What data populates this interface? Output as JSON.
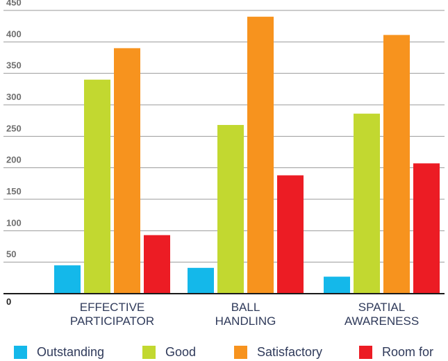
{
  "chart_data": {
    "type": "bar",
    "categories": [
      [
        "EFFECTIVE",
        "PARTICIPATOR"
      ],
      [
        "BALL",
        "HANDLING"
      ],
      [
        "SPATIAL",
        "AWARENESS"
      ]
    ],
    "series": [
      {
        "name": "Outstanding",
        "color": "#14b8ea",
        "values": [
          45,
          41,
          27
        ]
      },
      {
        "name": "Good",
        "color": "#c2d830",
        "values": [
          340,
          268,
          286
        ]
      },
      {
        "name": "Satisfactory",
        "color": "#f7931e",
        "values": [
          390,
          440,
          411
        ]
      },
      {
        "name": "Room for",
        "color": "#ec1c24",
        "values": [
          93,
          188,
          207
        ]
      }
    ],
    "ylim": [
      0,
      450
    ],
    "yticks": [
      50,
      100,
      150,
      200,
      250,
      300,
      350,
      400,
      450
    ],
    "zero_label": "0",
    "grid": true,
    "legend_position": "bottom"
  }
}
